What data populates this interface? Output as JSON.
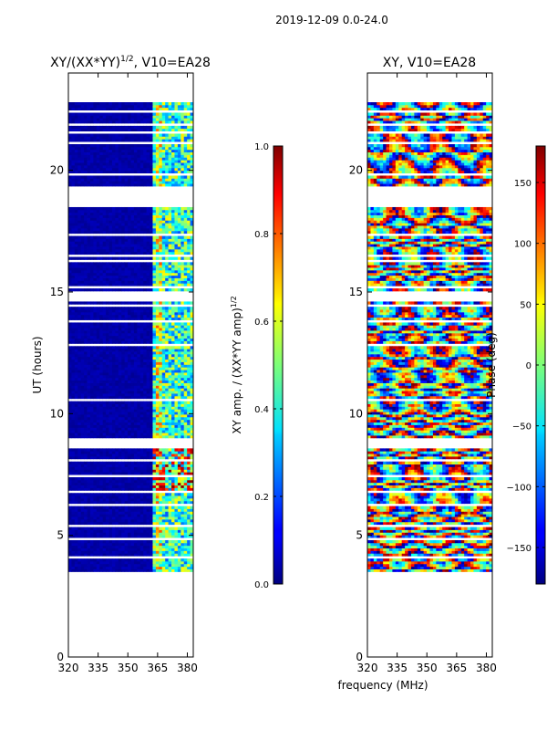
{
  "figure": {
    "suptitle": "2019-12-09 0.0-24.0",
    "shared_xlabel": "frequency (MHz)"
  },
  "chart_data": [
    {
      "type": "heatmap",
      "title_base": "XY/(XX*YY)",
      "title_sup": "1/2",
      "title_tail": ", V10=EA28",
      "ylabel": "UT (hours)",
      "xlim": [
        320,
        383
      ],
      "ylim": [
        0,
        24
      ],
      "xticks": [
        "320",
        "335",
        "350",
        "365",
        "380"
      ],
      "xtick_values": [
        320,
        335,
        350,
        365,
        380
      ],
      "yticks": [
        "0",
        "5",
        "10",
        "15",
        "20"
      ],
      "ytick_values": [
        0,
        5,
        10,
        15,
        20
      ],
      "data_extent_ut": [
        3.4,
        22.8
      ],
      "colorbar": {
        "label_base": "XY amp. / (XX*YY amp)",
        "label_sup": "1/2",
        "range": [
          0,
          1
        ],
        "ticks": [
          "0.0",
          "0.2",
          "0.4",
          "0.6",
          "0.8",
          "1.0"
        ],
        "tick_values": [
          0,
          0.2,
          0.4,
          0.6,
          0.8,
          1.0
        ],
        "colormap": "jet"
      }
    },
    {
      "type": "heatmap",
      "title": "XY, V10=EA28",
      "xlim": [
        320,
        383
      ],
      "ylim": [
        0,
        24
      ],
      "xticks": [
        "320",
        "335",
        "350",
        "365",
        "380"
      ],
      "xtick_values": [
        320,
        335,
        350,
        365,
        380
      ],
      "yticks": [
        "0",
        "5",
        "10",
        "15",
        "20"
      ],
      "ytick_values": [
        0,
        5,
        10,
        15,
        20
      ],
      "data_extent_ut": [
        3.4,
        22.8
      ],
      "colorbar": {
        "label": "Phase (deg)",
        "range": [
          -180,
          180
        ],
        "ticks": [
          "-150",
          "-100",
          "-50",
          "0",
          "50",
          "100",
          "150"
        ],
        "tick_values": [
          -150,
          -100,
          -50,
          0,
          50,
          100,
          150
        ],
        "colormap": "jet"
      }
    }
  ]
}
